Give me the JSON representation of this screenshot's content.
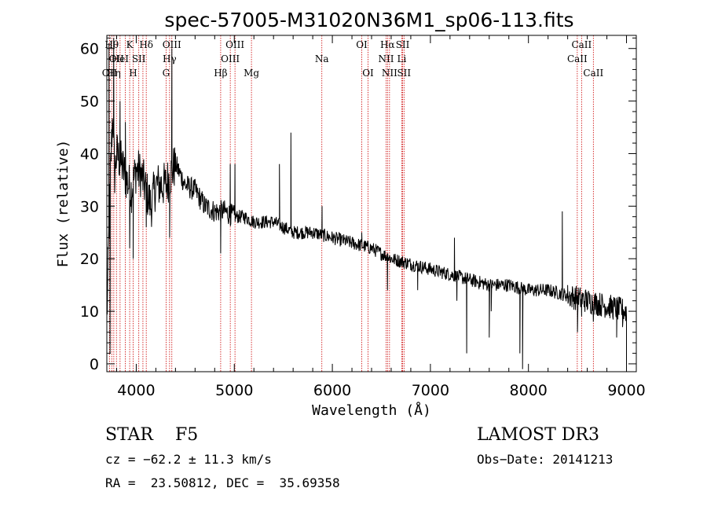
{
  "chart_data": {
    "type": "line",
    "title": "spec-57005-M31020N36M1_sp06-113.fits",
    "xlabel": "Wavelength (Å)",
    "ylabel": "Flux (relative)",
    "xlim": [
      3700,
      9100
    ],
    "ylim": [
      -1.5,
      62.5
    ],
    "xticks": [
      4000,
      5000,
      6000,
      7000,
      8000,
      9000
    ],
    "yticks": [
      0,
      10,
      20,
      30,
      40,
      50,
      60
    ],
    "xticks_minor_step": 200,
    "yticks_minor_step": 2,
    "spectrum_anchors": [
      [
        3700,
        8
      ],
      [
        3720,
        24
      ],
      [
        3740,
        38
      ],
      [
        3760,
        48
      ],
      [
        3780,
        36
      ],
      [
        3800,
        40
      ],
      [
        3850,
        38
      ],
      [
        3900,
        35
      ],
      [
        3950,
        33
      ],
      [
        4000,
        37
      ],
      [
        4050,
        36
      ],
      [
        4100,
        33
      ],
      [
        4150,
        30
      ],
      [
        4200,
        34
      ],
      [
        4300,
        34
      ],
      [
        4400,
        38
      ],
      [
        4500,
        34
      ],
      [
        4600,
        33
      ],
      [
        4700,
        30
      ],
      [
        4800,
        29
      ],
      [
        4900,
        29
      ],
      [
        5000,
        28
      ],
      [
        5100,
        28
      ],
      [
        5200,
        27
      ],
      [
        5400,
        27
      ],
      [
        5600,
        25
      ],
      [
        5800,
        25
      ],
      [
        6000,
        24
      ],
      [
        6200,
        23
      ],
      [
        6400,
        22
      ],
      [
        6600,
        20
      ],
      [
        6800,
        19
      ],
      [
        7000,
        18
      ],
      [
        7200,
        17
      ],
      [
        7400,
        16
      ],
      [
        7600,
        15
      ],
      [
        7800,
        15
      ],
      [
        8000,
        14
      ],
      [
        8200,
        14
      ],
      [
        8400,
        13
      ],
      [
        8600,
        12
      ],
      [
        8800,
        11
      ],
      [
        9000,
        10
      ]
    ],
    "spectrum_features": [
      {
        "x": 3722,
        "y": 61
      },
      {
        "x": 3770,
        "y": 62
      },
      {
        "x": 3733,
        "y": 2
      },
      {
        "x": 3835,
        "y": 50
      },
      {
        "x": 3889,
        "y": 46
      },
      {
        "x": 3933,
        "y": 22
      },
      {
        "x": 3968,
        "y": 20
      },
      {
        "x": 4102,
        "y": 26
      },
      {
        "x": 4340,
        "y": 24
      },
      {
        "x": 4363,
        "y": 60
      },
      {
        "x": 4390,
        "y": 40
      },
      {
        "x": 4861,
        "y": 21
      },
      {
        "x": 4959,
        "y": 38
      },
      {
        "x": 5007,
        "y": 38
      },
      {
        "x": 5460,
        "y": 38
      },
      {
        "x": 5577,
        "y": 44
      },
      {
        "x": 5890,
        "y": 24
      },
      {
        "x": 5895,
        "y": 30
      },
      {
        "x": 6300,
        "y": 25
      },
      {
        "x": 6563,
        "y": 14
      },
      {
        "x": 6565,
        "y": 21
      },
      {
        "x": 6870,
        "y": 14
      },
      {
        "x": 7245,
        "y": 24
      },
      {
        "x": 7270,
        "y": 12
      },
      {
        "x": 7370,
        "y": 2
      },
      {
        "x": 7600,
        "y": 5
      },
      {
        "x": 7620,
        "y": 10
      },
      {
        "x": 7913,
        "y": 2
      },
      {
        "x": 7940,
        "y": -1
      },
      {
        "x": 8345,
        "y": 29
      },
      {
        "x": 8400,
        "y": 15
      },
      {
        "x": 8500,
        "y": 6
      },
      {
        "x": 8542,
        "y": 9
      },
      {
        "x": 8662,
        "y": 8
      },
      {
        "x": 8900,
        "y": 5
      },
      {
        "x": 8960,
        "y": 7
      },
      {
        "x": 9000,
        "y": 0
      }
    ],
    "spectral_lines": [
      {
        "x": 3727,
        "label": "OII",
        "row": 2
      },
      {
        "x": 3750,
        "label": "Hθ",
        "row": 0
      },
      {
        "x": 3771,
        "label": "Hη",
        "row": 2
      },
      {
        "x": 3798,
        "label": "OII",
        "row": 1
      },
      {
        "x": 3835,
        "label": "HeI",
        "row": 1
      },
      {
        "x": 3889,
        "label": "",
        "row": 1
      },
      {
        "x": 3933,
        "label": "K",
        "row": 0
      },
      {
        "x": 3968,
        "label": "H",
        "row": 2
      },
      {
        "x": 4026,
        "label": "SII",
        "row": 1
      },
      {
        "x": 4068,
        "label": "",
        "row": 1
      },
      {
        "x": 4102,
        "label": "Hδ",
        "row": 0
      },
      {
        "x": 4304,
        "label": "G",
        "row": 2
      },
      {
        "x": 4340,
        "label": "Hγ",
        "row": 1
      },
      {
        "x": 4363,
        "label": "OIII",
        "row": 0
      },
      {
        "x": 4861,
        "label": "Hβ",
        "row": 2
      },
      {
        "x": 4959,
        "label": "OIII",
        "row": 1
      },
      {
        "x": 5007,
        "label": "OIII",
        "row": 0
      },
      {
        "x": 5175,
        "label": "Mg",
        "row": 2
      },
      {
        "x": 5893,
        "label": "Na",
        "row": 1
      },
      {
        "x": 6300,
        "label": "OI",
        "row": 0
      },
      {
        "x": 6364,
        "label": "OI",
        "row": 2
      },
      {
        "x": 6548,
        "label": "NII",
        "row": 1
      },
      {
        "x": 6563,
        "label": "Hα",
        "row": 0
      },
      {
        "x": 6583,
        "label": "NII",
        "row": 2
      },
      {
        "x": 6708,
        "label": "Li",
        "row": 1
      },
      {
        "x": 6717,
        "label": "SII",
        "row": 0
      },
      {
        "x": 6731,
        "label": "SII",
        "row": 2
      },
      {
        "x": 8498,
        "label": "CaII",
        "row": 1
      },
      {
        "x": 8542,
        "label": "CaII",
        "row": 0
      },
      {
        "x": 8662,
        "label": "CaII",
        "row": 2
      }
    ]
  },
  "info": {
    "classification": "STAR    F5",
    "survey": "LAMOST DR3",
    "redshift": "cz = −62.2 ± 11.3 km/s",
    "obs_date": "Obs−Date: 20141213",
    "coords": "RA =  23.50812, DEC =  35.69358"
  },
  "colors": {
    "spectrum": "#000000",
    "line_markers": "#cc0000",
    "axes": "#000000"
  }
}
